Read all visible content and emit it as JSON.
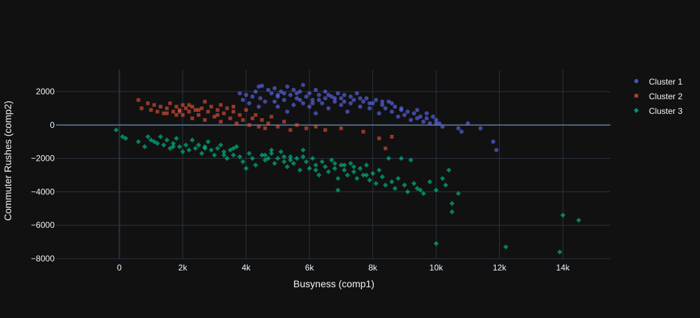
{
  "chart_data": {
    "type": "scatter",
    "title": "",
    "xlabel": "Busyness (comp1)",
    "ylabel": "Commuter Rushes (comp2)",
    "xlim": [
      -2000,
      15500
    ],
    "ylim": [
      -8000,
      3300
    ],
    "x_ticks": [
      0,
      2000,
      4000,
      6000,
      8000,
      10000,
      12000,
      14000
    ],
    "x_tick_labels": [
      "0",
      "2k",
      "4k",
      "6k",
      "8k",
      "10k",
      "12k",
      "14k"
    ],
    "y_ticks": [
      -8000,
      -6000,
      -4000,
      -2000,
      0,
      2000
    ],
    "y_tick_labels": [
      "−8000",
      "−6000",
      "−4000",
      "−2000",
      "0",
      "2000"
    ],
    "grid": true,
    "legend_position": "top-right",
    "series": [
      {
        "name": "Cluster 1",
        "color": "#636efa",
        "marker": "circle",
        "points": [
          [
            3800,
            1900
          ],
          [
            3900,
            1500
          ],
          [
            4000,
            1800
          ],
          [
            4100,
            1300
          ],
          [
            4200,
            1700
          ],
          [
            4300,
            2000
          ],
          [
            4400,
            2300
          ],
          [
            4450,
            1600
          ],
          [
            4500,
            2350
          ],
          [
            4600,
            1400
          ],
          [
            4700,
            2100
          ],
          [
            4800,
            1900
          ],
          [
            4900,
            2200
          ],
          [
            5000,
            1700
          ],
          [
            5000,
            1100
          ],
          [
            5100,
            2000
          ],
          [
            5200,
            1500
          ],
          [
            5300,
            2300
          ],
          [
            5300,
            800
          ],
          [
            5400,
            1800
          ],
          [
            5500,
            2100
          ],
          [
            5500,
            1200
          ],
          [
            5600,
            1600
          ],
          [
            5700,
            2000
          ],
          [
            5800,
            1300
          ],
          [
            5800,
            2400
          ],
          [
            5900,
            1700
          ],
          [
            6000,
            1900
          ],
          [
            6000,
            1100
          ],
          [
            6100,
            1500
          ],
          [
            6200,
            2100
          ],
          [
            6200,
            700
          ],
          [
            6300,
            1800
          ],
          [
            6400,
            1300
          ],
          [
            6500,
            1600
          ],
          [
            6500,
            2000
          ],
          [
            6600,
            1000
          ],
          [
            6700,
            1700
          ],
          [
            6800,
            1400
          ],
          [
            6900,
            1900
          ],
          [
            7000,
            1200
          ],
          [
            7000,
            1600
          ],
          [
            7100,
            1800
          ],
          [
            7200,
            800
          ],
          [
            7300,
            1700
          ],
          [
            7300,
            1300
          ],
          [
            7400,
            1500
          ],
          [
            7500,
            1900
          ],
          [
            7600,
            1100
          ],
          [
            7700,
            1400
          ],
          [
            7800,
            1600
          ],
          [
            7900,
            1000
          ],
          [
            8000,
            1300
          ],
          [
            8100,
            1500
          ],
          [
            8200,
            700
          ],
          [
            8300,
            1200
          ],
          [
            8400,
            1000
          ],
          [
            8500,
            1400
          ],
          [
            8600,
            800
          ],
          [
            8700,
            1100
          ],
          [
            8800,
            500
          ],
          [
            8900,
            900
          ],
          [
            9000,
            600
          ],
          [
            9100,
            800
          ],
          [
            9200,
            300
          ],
          [
            9300,
            700
          ],
          [
            9400,
            400
          ],
          [
            9500,
            500
          ],
          [
            9600,
            200
          ],
          [
            9700,
            700
          ],
          [
            9800,
            100
          ],
          [
            9900,
            500
          ],
          [
            10000,
            300
          ],
          [
            10100,
            100
          ],
          [
            10200,
            -100
          ],
          [
            10700,
            -200
          ],
          [
            10800,
            -400
          ],
          [
            11000,
            100
          ],
          [
            11400,
            -200
          ],
          [
            11800,
            -1000
          ],
          [
            11900,
            -1500
          ],
          [
            5600,
            1900
          ],
          [
            6100,
            1300
          ],
          [
            6600,
            1800
          ],
          [
            7100,
            1400
          ],
          [
            5200,
            1900
          ],
          [
            4900,
            1400
          ],
          [
            6800,
            1600
          ],
          [
            7600,
            1600
          ],
          [
            8300,
            1400
          ],
          [
            8900,
            1000
          ],
          [
            9400,
            900
          ],
          [
            9700,
            400
          ],
          [
            10000,
            100
          ],
          [
            4400,
            1100
          ],
          [
            5000,
            1800
          ],
          [
            5700,
            1500
          ],
          [
            6300,
            1500
          ],
          [
            7900,
            1300
          ],
          [
            8600,
            1300
          ]
        ]
      },
      {
        "name": "Cluster 2",
        "color": "#ef553b",
        "marker": "square",
        "points": [
          [
            600,
            1500
          ],
          [
            700,
            1000
          ],
          [
            900,
            1300
          ],
          [
            1000,
            900
          ],
          [
            1100,
            1200
          ],
          [
            1200,
            800
          ],
          [
            1300,
            1100
          ],
          [
            1400,
            700
          ],
          [
            1500,
            1000
          ],
          [
            1600,
            1300
          ],
          [
            1700,
            800
          ],
          [
            1800,
            1100
          ],
          [
            1900,
            900
          ],
          [
            2000,
            1200
          ],
          [
            2000,
            600
          ],
          [
            2100,
            1000
          ],
          [
            2200,
            800
          ],
          [
            2300,
            1100
          ],
          [
            2300,
            400
          ],
          [
            2400,
            900
          ],
          [
            2500,
            600
          ],
          [
            2600,
            1000
          ],
          [
            2700,
            1400
          ],
          [
            2700,
            300
          ],
          [
            2800,
            800
          ],
          [
            2900,
            1100
          ],
          [
            3000,
            500
          ],
          [
            3100,
            900
          ],
          [
            3200,
            1200
          ],
          [
            3200,
            200
          ],
          [
            3300,
            700
          ],
          [
            3400,
            1000
          ],
          [
            3500,
            400
          ],
          [
            3600,
            800
          ],
          [
            3700,
            100
          ],
          [
            3800,
            600
          ],
          [
            3900,
            300
          ],
          [
            4000,
            900
          ],
          [
            4100,
            0
          ],
          [
            4200,
            400
          ],
          [
            4300,
            600
          ],
          [
            4400,
            -100
          ],
          [
            4500,
            300
          ],
          [
            4600,
            -200
          ],
          [
            4700,
            100
          ],
          [
            4800,
            500
          ],
          [
            5000,
            -100
          ],
          [
            5200,
            200
          ],
          [
            5400,
            -300
          ],
          [
            5600,
            0
          ],
          [
            5900,
            -200
          ],
          [
            6200,
            -100
          ],
          [
            6500,
            -300
          ],
          [
            7000,
            -200
          ],
          [
            7700,
            -400
          ],
          [
            8200,
            -800
          ],
          [
            8400,
            -1400
          ],
          [
            8600,
            -700
          ],
          [
            1900,
            800
          ],
          [
            2500,
            900
          ],
          [
            1500,
            700
          ],
          [
            3100,
            600
          ],
          [
            2200,
            1200
          ],
          [
            3600,
            1100
          ],
          [
            1800,
            600
          ]
        ]
      },
      {
        "name": "Cluster 3",
        "color": "#00cc96",
        "marker": "diamond",
        "points": [
          [
            -100,
            -300
          ],
          [
            100,
            -700
          ],
          [
            200,
            -800
          ],
          [
            900,
            -700
          ],
          [
            800,
            -1300
          ],
          [
            1000,
            -900
          ],
          [
            1200,
            -1100
          ],
          [
            1300,
            -700
          ],
          [
            1400,
            -1200
          ],
          [
            1500,
            -900
          ],
          [
            1600,
            -1400
          ],
          [
            1700,
            -1100
          ],
          [
            1800,
            -800
          ],
          [
            1900,
            -1300
          ],
          [
            2000,
            -1600
          ],
          [
            2100,
            -1200
          ],
          [
            2200,
            -1500
          ],
          [
            2300,
            -900
          ],
          [
            2400,
            -1400
          ],
          [
            2500,
            -1200
          ],
          [
            2600,
            -1700
          ],
          [
            2700,
            -1300
          ],
          [
            2800,
            -1000
          ],
          [
            2900,
            -1500
          ],
          [
            3000,
            -1800
          ],
          [
            3100,
            -1400
          ],
          [
            3200,
            -1200
          ],
          [
            3300,
            -1600
          ],
          [
            3400,
            -2000
          ],
          [
            3500,
            -1500
          ],
          [
            3600,
            -1800
          ],
          [
            3700,
            -1300
          ],
          [
            3800,
            -1900
          ],
          [
            3900,
            -2200
          ],
          [
            4000,
            -2600
          ],
          [
            4100,
            -1700
          ],
          [
            4200,
            -2000
          ],
          [
            4300,
            -2400
          ],
          [
            4500,
            -1800
          ],
          [
            4600,
            -2100
          ],
          [
            4800,
            -1700
          ],
          [
            4900,
            -2300
          ],
          [
            5000,
            -2000
          ],
          [
            5100,
            -1600
          ],
          [
            5200,
            -2200
          ],
          [
            5300,
            -2500
          ],
          [
            5400,
            -1900
          ],
          [
            5500,
            -2300
          ],
          [
            5600,
            -2000
          ],
          [
            5700,
            -2700
          ],
          [
            5800,
            -1500
          ],
          [
            5900,
            -2200
          ],
          [
            6000,
            -2600
          ],
          [
            6100,
            -2000
          ],
          [
            6200,
            -2400
          ],
          [
            6300,
            -3000
          ],
          [
            6400,
            -2200
          ],
          [
            6500,
            -2500
          ],
          [
            6600,
            -2800
          ],
          [
            6700,
            -2100
          ],
          [
            6800,
            -2600
          ],
          [
            6900,
            -3200
          ],
          [
            7000,
            -2400
          ],
          [
            7100,
            -2700
          ],
          [
            7200,
            -3000
          ],
          [
            7300,
            -2300
          ],
          [
            7400,
            -2800
          ],
          [
            7500,
            -3200
          ],
          [
            7600,
            -2600
          ],
          [
            7700,
            -3000
          ],
          [
            7800,
            -2400
          ],
          [
            7900,
            -3300
          ],
          [
            8000,
            -2900
          ],
          [
            8100,
            -3500
          ],
          [
            8200,
            -2700
          ],
          [
            8300,
            -3100
          ],
          [
            8400,
            -3600
          ],
          [
            8500,
            -2000
          ],
          [
            8600,
            -3400
          ],
          [
            8700,
            -3800
          ],
          [
            8800,
            -3200
          ],
          [
            8900,
            -2000
          ],
          [
            9000,
            -3600
          ],
          [
            9100,
            -4000
          ],
          [
            9200,
            -2100
          ],
          [
            9300,
            -3500
          ],
          [
            9400,
            -3800
          ],
          [
            9600,
            -4100
          ],
          [
            9800,
            -3400
          ],
          [
            10000,
            -3900
          ],
          [
            10200,
            -3200
          ],
          [
            10300,
            -3600
          ],
          [
            10400,
            -2700
          ],
          [
            10500,
            -4700
          ],
          [
            10700,
            -4100
          ],
          [
            10000,
            -7100
          ],
          [
            12200,
            -7300
          ],
          [
            13900,
            -7600
          ],
          [
            14000,
            -5400
          ],
          [
            14500,
            -5700
          ],
          [
            1100,
            -1000
          ],
          [
            2700,
            -1400
          ],
          [
            3600,
            -1400
          ],
          [
            4600,
            -1800
          ],
          [
            5400,
            -2100
          ],
          [
            6200,
            -2700
          ],
          [
            7100,
            -2400
          ],
          [
            4700,
            -2000
          ],
          [
            6800,
            -2300
          ],
          [
            7800,
            -3000
          ],
          [
            5800,
            -1900
          ],
          [
            10500,
            -5200
          ],
          [
            4800,
            -1500
          ],
          [
            6900,
            -3900
          ],
          [
            9500,
            -3900
          ],
          [
            600,
            -1000
          ],
          [
            1700,
            -1300
          ],
          [
            3300,
            -1800
          ],
          [
            5200,
            -1900
          ],
          [
            7400,
            -2500
          ]
        ]
      }
    ]
  }
}
